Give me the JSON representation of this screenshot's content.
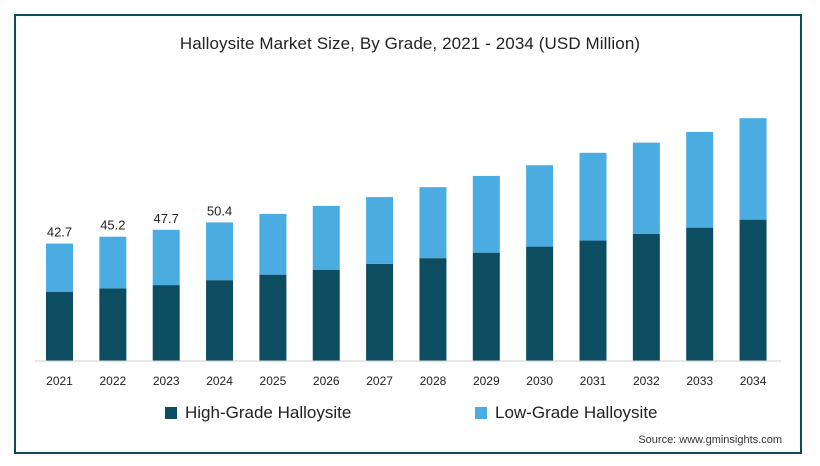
{
  "chart_data": {
    "type": "bar",
    "stacked": true,
    "title": "Halloysite Market Size, By Grade, 2021 - 2034 (USD Million)",
    "categories": [
      "2021",
      "2022",
      "2023",
      "2024",
      "2025",
      "2026",
      "2027",
      "2028",
      "2029",
      "2030",
      "2031",
      "2032",
      "2033",
      "2034"
    ],
    "series": [
      {
        "name": "High-Grade Halloysite",
        "color": "#0d4d62",
        "values": [
          25.1,
          26.4,
          27.6,
          29.4,
          31.4,
          33.2,
          35.3,
          37.4,
          39.4,
          41.6,
          43.8,
          46.2,
          48.5,
          51.4
        ]
      },
      {
        "name": "Low-Grade Halloysite",
        "color": "#4aace0",
        "values": [
          17.6,
          18.8,
          20.1,
          21.0,
          22.1,
          23.2,
          24.3,
          25.8,
          27.9,
          29.6,
          31.9,
          33.2,
          34.8,
          36.9
        ]
      }
    ],
    "data_labels": [
      "42.7",
      "45.2",
      "47.7",
      "50.4",
      "",
      "",
      "",
      "",
      "",
      "",
      "",
      "",
      "",
      ""
    ],
    "ylim": [
      0,
      92
    ],
    "legend_position": "bottom",
    "grid": false
  },
  "source": "Source: www.gminsights.com"
}
